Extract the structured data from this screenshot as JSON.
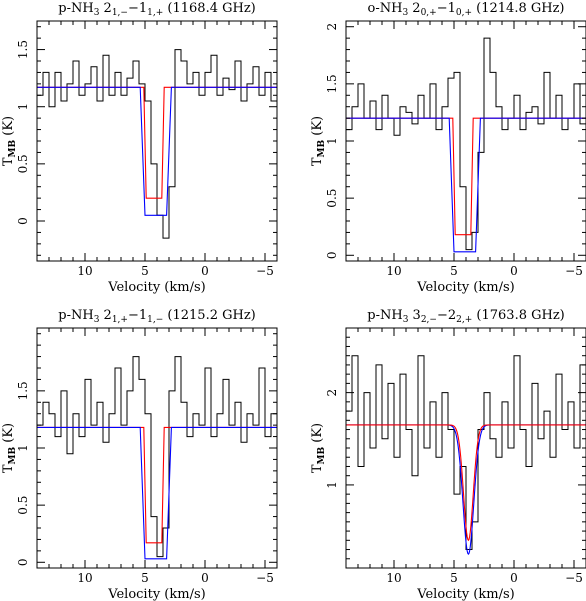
{
  "chart_data": [
    {
      "type": "line",
      "title": "p-NH₃ 2₁,₋−1₁,₊ (1168.4 GHz)",
      "title_parts": {
        "prefix": "p-NH",
        "mol_sub": "3",
        "upper": "2",
        "upper_sub": "1,−",
        "lower": "1",
        "lower_sub": "1,+",
        "freq": "(1168.4 GHz)"
      },
      "xlabel": "Velocity (km/s)",
      "ylabel": "T_MB (K)",
      "xlim": [
        14,
        -6
      ],
      "ylim": [
        -0.35,
        1.75
      ],
      "xticks": [
        10,
        5,
        0,
        -5
      ],
      "xtick_labels": [
        "10",
        "5",
        "0",
        "−5"
      ],
      "yticks": [
        0,
        0.5,
        1,
        1.5
      ],
      "ytick_labels": [
        "0",
        "0.5",
        "1",
        "1.5"
      ],
      "series": [
        {
          "color": "#000000",
          "step": true,
          "x": [
            14,
            13.5,
            13,
            12.5,
            12,
            11.5,
            11,
            10.5,
            10,
            9.5,
            9,
            8.5,
            8,
            7.5,
            7,
            6.5,
            6,
            5.5,
            5,
            4.5,
            4,
            3.5,
            3,
            2.5,
            2,
            1.5,
            1,
            0.5,
            0,
            -0.5,
            -1,
            -1.5,
            -2,
            -2.5,
            -3,
            -3.5,
            -4,
            -4.5,
            -5,
            -5.5,
            -6
          ],
          "y": [
            1.1,
            1.3,
            1.0,
            1.3,
            1.05,
            1.2,
            1.4,
            1.1,
            1.2,
            1.35,
            1.05,
            1.45,
            1.1,
            1.3,
            1.1,
            1.25,
            1.4,
            1.2,
            1.05,
            0.5,
            0.05,
            -0.15,
            0.3,
            1.5,
            1.4,
            1.2,
            1.3,
            1.1,
            1.3,
            1.45,
            1.1,
            1.25,
            1.15,
            1.4,
            1.05,
            1.2,
            1.35,
            1.1,
            1.3,
            1.05,
            1.2
          ]
        },
        {
          "color": "#ff0000",
          "x": [
            14,
            5.1,
            4.9,
            3.6,
            3.4,
            -6
          ],
          "y": [
            1.17,
            1.17,
            0.2,
            0.2,
            1.17,
            1.17
          ]
        },
        {
          "color": "#0000ff",
          "x": [
            14,
            5.4,
            5.0,
            3.2,
            2.8,
            -6
          ],
          "y": [
            1.17,
            1.17,
            0.05,
            0.05,
            1.17,
            1.17
          ]
        }
      ]
    },
    {
      "type": "line",
      "title": "o-NH₃ 2₀,₊−1₀,₊ (1214.8 GHz)",
      "title_parts": {
        "prefix": "o-NH",
        "mol_sub": "3",
        "upper": "2",
        "upper_sub": "0,+",
        "lower": "1",
        "lower_sub": "0,+",
        "freq": "(1214.8 GHz)"
      },
      "xlabel": "Velocity (km/s)",
      "ylabel": "T_MB (K)",
      "xlim": [
        14,
        -6
      ],
      "ylim": [
        -0.05,
        2.05
      ],
      "xticks": [
        10,
        5,
        0,
        -5
      ],
      "xtick_labels": [
        "10",
        "5",
        "0",
        "−5"
      ],
      "yticks": [
        0,
        0.5,
        1,
        1.5,
        2
      ],
      "ytick_labels": [
        "0",
        "0.5",
        "1",
        "1.5",
        "2"
      ],
      "series": [
        {
          "color": "#000000",
          "step": true,
          "x": [
            14,
            13.5,
            13,
            12.5,
            12,
            11.5,
            11,
            10.5,
            10,
            9.5,
            9,
            8.5,
            8,
            7.5,
            7,
            6.5,
            6,
            5.5,
            5,
            4.5,
            4,
            3.5,
            3,
            2.5,
            2,
            1.5,
            1,
            0.5,
            0,
            -0.5,
            -1,
            -1.5,
            -2,
            -2.5,
            -3,
            -3.5,
            -4,
            -4.5,
            -5,
            -5.5,
            -6
          ],
          "y": [
            1.1,
            1.3,
            1.5,
            1.2,
            1.35,
            1.1,
            1.4,
            1.2,
            1.05,
            1.3,
            1.25,
            1.15,
            1.4,
            1.2,
            1.5,
            1.1,
            1.3,
            1.55,
            1.6,
            0.6,
            0.05,
            0.2,
            0.9,
            1.9,
            1.6,
            1.3,
            1.1,
            1.2,
            1.4,
            1.1,
            1.25,
            1.3,
            1.15,
            1.6,
            1.2,
            1.4,
            1.1,
            1.2,
            1.5,
            1.15,
            1.3
          ]
        },
        {
          "color": "#ff0000",
          "x": [
            14,
            5.1,
            4.9,
            3.6,
            3.4,
            -6
          ],
          "y": [
            1.2,
            1.2,
            0.18,
            0.18,
            1.2,
            1.2
          ]
        },
        {
          "color": "#0000ff",
          "x": [
            14,
            5.4,
            5.0,
            3.2,
            2.8,
            -6
          ],
          "y": [
            1.2,
            1.2,
            0.03,
            0.03,
            1.2,
            1.2
          ]
        }
      ]
    },
    {
      "type": "line",
      "title": "p-NH₃ 2₁,₊−1₁,₋ (1215.2 GHz)",
      "title_parts": {
        "prefix": "p-NH",
        "mol_sub": "3",
        "upper": "2",
        "upper_sub": "1,+",
        "lower": "1",
        "lower_sub": "1,−",
        "freq": "(1215.2 GHz)"
      },
      "xlabel": "Velocity (km/s)",
      "ylabel": "T_MB (K)",
      "xlim": [
        14,
        -6
      ],
      "ylim": [
        -0.05,
        2.05
      ],
      "xticks": [
        10,
        5,
        0,
        -5
      ],
      "xtick_labels": [
        "10",
        "5",
        "0",
        "−5"
      ],
      "yticks": [
        0,
        0.5,
        1,
        1.5
      ],
      "ytick_labels": [
        "0",
        "0.5",
        "1",
        "1.5"
      ],
      "series": [
        {
          "color": "#000000",
          "step": true,
          "x": [
            14,
            13.5,
            13,
            12.5,
            12,
            11.5,
            11,
            10.5,
            10,
            9.5,
            9,
            8.5,
            8,
            7.5,
            7,
            6.5,
            6,
            5.5,
            5,
            4.5,
            4,
            3.5,
            3,
            2.5,
            2,
            1.5,
            1,
            0.5,
            0,
            -0.5,
            -1,
            -1.5,
            -2,
            -2.5,
            -3,
            -3.5,
            -4,
            -4.5,
            -5,
            -5.5,
            -6
          ],
          "y": [
            1.2,
            1.4,
            1.3,
            1.1,
            1.5,
            0.95,
            1.3,
            1.1,
            1.6,
            1.2,
            1.4,
            1.05,
            1.3,
            1.7,
            1.2,
            1.5,
            1.8,
            1.6,
            1.3,
            0.4,
            0.05,
            0.3,
            1.5,
            1.8,
            1.4,
            1.1,
            1.3,
            1.2,
            1.7,
            1.1,
            1.3,
            1.6,
            1.2,
            1.4,
            1.05,
            1.3,
            1.2,
            1.7,
            1.1,
            1.3,
            1.2
          ]
        },
        {
          "color": "#ff0000",
          "x": [
            14,
            5.1,
            4.9,
            3.6,
            3.4,
            -6
          ],
          "y": [
            1.18,
            1.18,
            0.17,
            0.17,
            1.18,
            1.18
          ]
        },
        {
          "color": "#0000ff",
          "x": [
            14,
            5.4,
            5.0,
            3.2,
            2.8,
            -6
          ],
          "y": [
            1.18,
            1.18,
            0.03,
            0.03,
            1.18,
            1.18
          ]
        }
      ]
    },
    {
      "type": "line",
      "title": "p-NH₃ 3₂,₋−2₂,₊ (1763.8 GHz)",
      "title_parts": {
        "prefix": "p-NH",
        "mol_sub": "3",
        "upper": "3",
        "upper_sub": "2,−",
        "lower": "2",
        "lower_sub": "2,+",
        "freq": "(1763.8 GHz)"
      },
      "xlabel": "Velocity (km/s)",
      "ylabel": "T_MB (K)",
      "xlim": [
        14,
        -6
      ],
      "ylim": [
        0.1,
        2.7
      ],
      "xticks": [
        10,
        5,
        0,
        -5
      ],
      "xtick_labels": [
        "10",
        "5",
        "0",
        "−5"
      ],
      "yticks": [
        1,
        2
      ],
      "ytick_labels": [
        "1",
        "2"
      ],
      "series": [
        {
          "color": "#000000",
          "step": true,
          "x": [
            14,
            13.5,
            13,
            12.5,
            12,
            11.5,
            11,
            10.5,
            10,
            9.5,
            9,
            8.5,
            8,
            7.5,
            7,
            6.5,
            6,
            5.5,
            5,
            4.5,
            4,
            3.5,
            3,
            2.5,
            2,
            1.5,
            1,
            0.5,
            0,
            -0.5,
            -1,
            -1.5,
            -2,
            -2.5,
            -3,
            -3.5,
            -4,
            -4.5,
            -5,
            -5.5,
            -6
          ],
          "y": [
            1.8,
            2.4,
            1.2,
            2.0,
            1.4,
            2.3,
            1.5,
            2.1,
            1.3,
            2.2,
            1.6,
            1.1,
            2.4,
            1.4,
            1.9,
            1.3,
            2.0,
            1.6,
            0.9,
            1.2,
            0.3,
            0.6,
            1.6,
            2.0,
            1.5,
            1.3,
            1.9,
            1.4,
            2.4,
            1.6,
            1.2,
            2.1,
            1.5,
            1.8,
            1.3,
            2.2,
            1.6,
            1.9,
            1.4,
            2.3,
            1.7
          ]
        },
        {
          "color": "#0000ff",
          "gaussian": {
            "center": 3.8,
            "sigma": 0.45,
            "base": 1.65,
            "depth": 1.4
          }
        },
        {
          "color": "#ff0000",
          "gaussian": {
            "center": 3.8,
            "sigma": 0.4,
            "base": 1.65,
            "depth": 1.25
          }
        }
      ]
    }
  ]
}
